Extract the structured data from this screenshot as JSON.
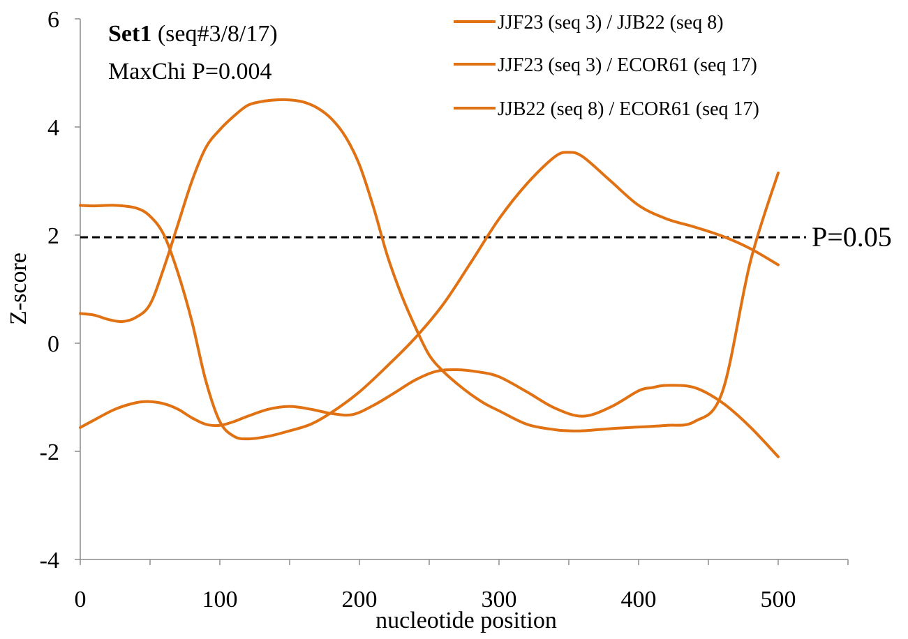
{
  "chart_data": {
    "type": "line",
    "annotation": {
      "bold": "Set1",
      "rest": " (seq#3/8/17)",
      "line2": "MaxChi P=0.004"
    },
    "xlabel": "nucleotide position",
    "ylabel": "Z-score",
    "xlim": [
      0,
      550
    ],
    "ylim": [
      -4,
      6
    ],
    "x_ticks": [
      0,
      100,
      200,
      300,
      400,
      500
    ],
    "y_ticks": [
      -4,
      -2,
      0,
      2,
      4,
      6
    ],
    "grid": false,
    "legend_position": "top-right",
    "threshold": {
      "y": 1.96,
      "label": "P=0.05",
      "style": "dashed",
      "color": "#000000"
    },
    "series": [
      {
        "name": "JJF23 (seq 3) / JJB22 (seq 8)",
        "color": "#E07214",
        "x": [
          0,
          10,
          25,
          40,
          50,
          60,
          70,
          80,
          90,
          100,
          110,
          120,
          135,
          150,
          165,
          180,
          195,
          210,
          225,
          240,
          255,
          270,
          285,
          300,
          320,
          340,
          360,
          380,
          400,
          410,
          420,
          440,
          460,
          480,
          500
        ],
        "y": [
          -1.56,
          -1.42,
          -1.22,
          -1.1,
          -1.08,
          -1.12,
          -1.22,
          -1.38,
          -1.5,
          -1.52,
          -1.45,
          -1.35,
          -1.22,
          -1.17,
          -1.22,
          -1.3,
          -1.32,
          -1.15,
          -0.92,
          -0.68,
          -0.52,
          -0.49,
          -0.53,
          -0.62,
          -0.9,
          -1.2,
          -1.35,
          -1.18,
          -0.88,
          -0.82,
          -0.78,
          -0.82,
          -1.1,
          -1.55,
          -2.1
        ]
      },
      {
        "name": "JJF23 (seq 3) / ECOR61 (seq 17)",
        "color": "#E07214",
        "x": [
          0,
          10,
          20,
          30,
          40,
          50,
          60,
          70,
          80,
          90,
          100,
          110,
          120,
          130,
          140,
          150,
          160,
          170,
          180,
          190,
          200,
          210,
          220,
          230,
          240,
          250,
          260,
          270,
          280,
          290,
          300,
          320,
          340,
          350,
          360,
          380,
          400,
          420,
          440,
          460,
          480,
          500
        ],
        "y": [
          0.55,
          0.52,
          0.44,
          0.4,
          0.48,
          0.72,
          1.4,
          2.2,
          3.0,
          3.62,
          3.95,
          4.2,
          4.4,
          4.47,
          4.5,
          4.5,
          4.46,
          4.35,
          4.15,
          3.82,
          3.3,
          2.52,
          1.62,
          0.9,
          0.3,
          -0.22,
          -0.52,
          -0.75,
          -0.95,
          -1.12,
          -1.25,
          -1.5,
          -1.6,
          -1.62,
          -1.62,
          -1.58,
          -1.55,
          -1.52,
          -1.45,
          -0.9,
          1.5,
          3.15
        ]
      },
      {
        "name": "JJB22 (seq 8) / ECOR61 (seq 17)",
        "color": "#E07214",
        "x": [
          0,
          10,
          25,
          40,
          50,
          60,
          70,
          80,
          90,
          100,
          110,
          120,
          135,
          150,
          165,
          180,
          200,
          220,
          240,
          260,
          280,
          300,
          320,
          340,
          350,
          360,
          380,
          400,
          420,
          440,
          460,
          480,
          500
        ],
        "y": [
          2.55,
          2.54,
          2.55,
          2.5,
          2.35,
          2.0,
          1.3,
          0.4,
          -0.7,
          -1.45,
          -1.72,
          -1.77,
          -1.72,
          -1.62,
          -1.5,
          -1.28,
          -0.9,
          -0.42,
          0.1,
          0.72,
          1.5,
          2.3,
          2.95,
          3.45,
          3.53,
          3.45,
          3.0,
          2.55,
          2.3,
          2.15,
          1.98,
          1.75,
          1.45
        ]
      }
    ]
  }
}
